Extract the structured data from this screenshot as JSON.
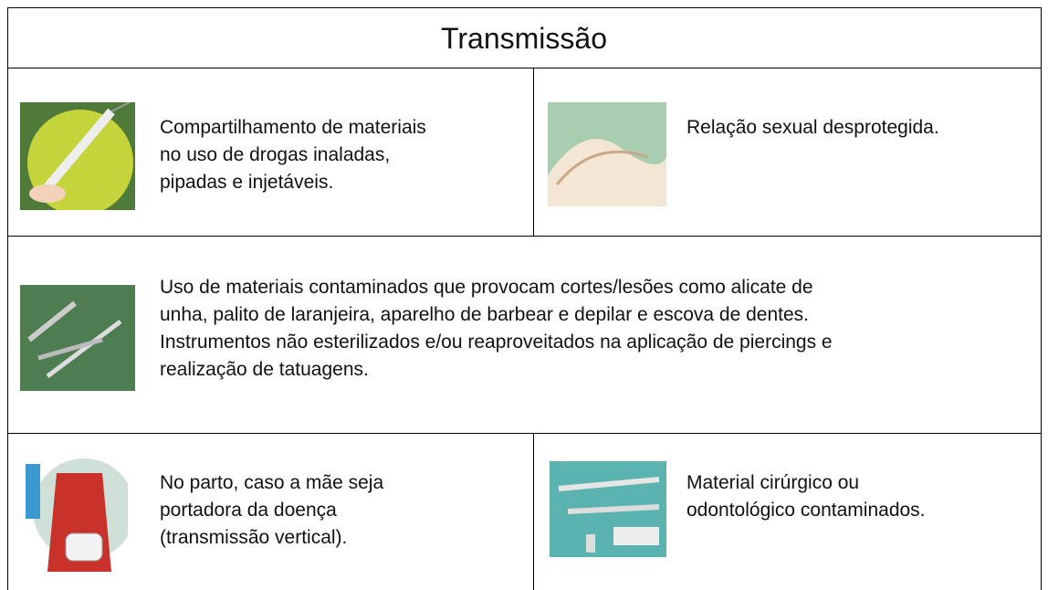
{
  "title": "Transmissão",
  "rows": [
    [
      {
        "lines": [
          "Compartilhamento de materiais",
          "no uso de drogas inaladas,",
          "pipadas e injetáveis."
        ]
      },
      {
        "lines": [
          "Relação sexual desprotegida."
        ]
      }
    ],
    [
      {
        "lines": [
          "Uso de materiais contaminados que provocam cortes/lesões como alicate de",
          "unha, palito de laranjeira, aparelho de barbear e depilar e escova de dentes.",
          "Instrumentos não esterilizados e/ou reaproveitados na aplicação de piercings e",
          "realização de tatuagens."
        ]
      }
    ],
    [
      {
        "lines": [
          "No parto, caso a mãe seja",
          "portadora da doença",
          "(transmissão vertical)."
        ]
      },
      {
        "lines": [
          "Material cirúrgico ou",
          "odontológico contaminados."
        ]
      }
    ]
  ]
}
